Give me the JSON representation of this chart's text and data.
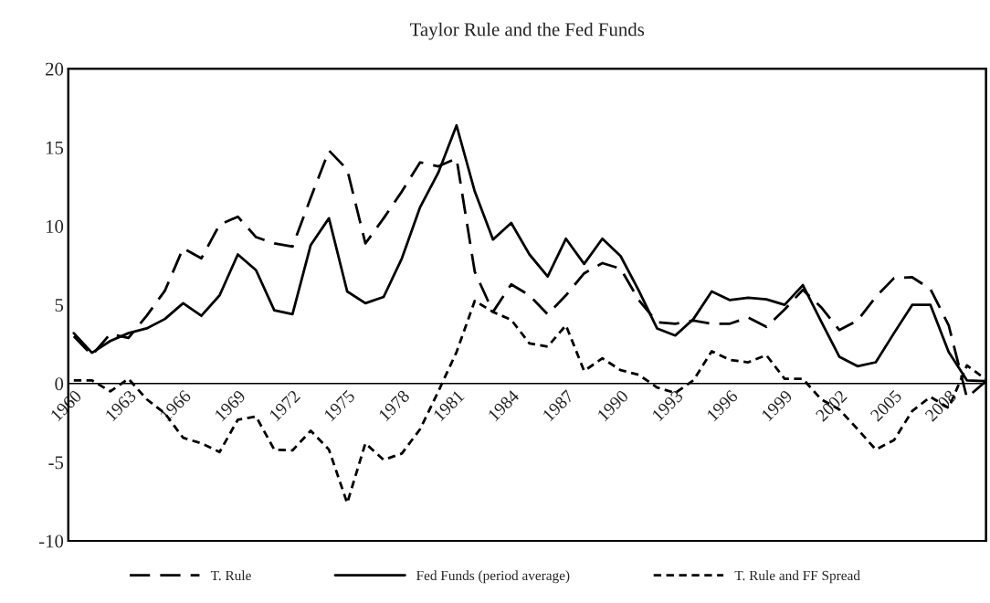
{
  "chart_data": {
    "type": "line",
    "title": "Taylor Rule and the Fed Funds",
    "categories": [
      "1960",
      null,
      null,
      "1963",
      null,
      null,
      "1966",
      null,
      null,
      "1969",
      null,
      null,
      "1972",
      null,
      null,
      "1975",
      null,
      null,
      "1978",
      null,
      null,
      "1981",
      null,
      null,
      "1984",
      null,
      null,
      "1987",
      null,
      null,
      "1990",
      null,
      null,
      "1993",
      null,
      null,
      "1996",
      null,
      null,
      "1999",
      null,
      null,
      "2002",
      null,
      null,
      "2005",
      null,
      null,
      "2008",
      null,
      null
    ],
    "series": [
      {
        "name": "T. Rule",
        "color": "#000000",
        "line_style": "dashed",
        "values": [
          3.0,
          1.8,
          3.15,
          2.9,
          4.3,
          5.9,
          8.6,
          7.95,
          10.1,
          10.6,
          9.3,
          8.9,
          8.7,
          11.8,
          14.8,
          13.6,
          8.9,
          10.5,
          12.2,
          14.05,
          13.8,
          14.3,
          7.1,
          4.55,
          6.3,
          5.6,
          4.4,
          5.6,
          7.0,
          7.65,
          7.3,
          5.3,
          3.9,
          3.8,
          4.0,
          3.8,
          3.8,
          4.2,
          3.6,
          4.7,
          5.95,
          4.85,
          3.4,
          4.0,
          5.5,
          6.7,
          6.75,
          6.0,
          3.7,
          -0.9,
          0.1
        ]
      },
      {
        "name": "Fed Funds (period average)",
        "color": "#000000",
        "line_style": "solid",
        "values": [
          3.2,
          1.95,
          2.7,
          3.2,
          3.5,
          4.1,
          5.1,
          4.3,
          5.6,
          8.2,
          7.2,
          4.65,
          4.4,
          8.8,
          10.5,
          5.85,
          5.1,
          5.5,
          7.95,
          11.2,
          13.4,
          16.4,
          12.2,
          9.15,
          10.2,
          8.2,
          6.8,
          9.2,
          7.6,
          9.2,
          8.1,
          5.9,
          3.5,
          3.05,
          4.1,
          5.85,
          5.3,
          5.45,
          5.35,
          5.0,
          6.25,
          3.95,
          1.7,
          1.1,
          1.35,
          3.2,
          5.0,
          5.0,
          2.0,
          0.2,
          0.15
        ]
      },
      {
        "name": "T. Rule and FF Spread",
        "color": "#000000",
        "line_style": "dotted",
        "values": [
          0.2,
          0.2,
          -0.5,
          0.3,
          -1.0,
          -1.9,
          -3.45,
          -3.8,
          -4.35,
          -2.3,
          -2.1,
          -4.2,
          -4.25,
          -3.0,
          -4.2,
          -7.6,
          -3.8,
          -4.85,
          -4.45,
          -2.9,
          -0.5,
          2.0,
          5.25,
          4.55,
          4.05,
          2.55,
          2.35,
          3.7,
          0.8,
          1.6,
          0.85,
          0.55,
          -0.25,
          -0.6,
          0.2,
          2.05,
          1.5,
          1.35,
          1.8,
          0.3,
          0.3,
          -1.0,
          -1.65,
          -2.9,
          -4.2,
          -3.6,
          -1.75,
          -0.85,
          -1.55,
          1.15,
          0.3
        ]
      }
    ],
    "ylim": [
      -10,
      20
    ],
    "yticks": [
      -10,
      -5,
      0,
      5,
      10,
      15,
      20
    ],
    "grid": false,
    "legend": "bottom",
    "marker": "none"
  }
}
